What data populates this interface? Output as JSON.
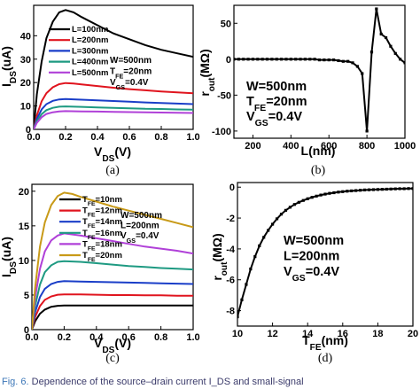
{
  "chart_data": [
    {
      "type": "line",
      "panel": "(a)",
      "xlabel": "V_DS(V)",
      "ylabel": "I_DS(uA)",
      "xlim": [
        0,
        1.0
      ],
      "ylim": [
        0,
        53
      ],
      "xticks": [
        "0.0",
        "0.2",
        "0.4",
        "0.6",
        "0.8",
        "1.0"
      ],
      "yticks": [
        "0",
        "10",
        "20",
        "30",
        "40"
      ],
      "params": [
        "W=500nm",
        "T_FE=20nm",
        "V_GS=0.4V"
      ],
      "series": [
        {
          "name": "L=100nm",
          "color": "#000000",
          "x": [
            0,
            0.02,
            0.05,
            0.08,
            0.12,
            0.16,
            0.2,
            0.25,
            0.3,
            0.4,
            0.5,
            0.6,
            0.7,
            0.8,
            0.9,
            1.0
          ],
          "y": [
            0,
            15,
            29,
            39,
            46,
            50,
            51,
            50,
            48,
            44.5,
            41,
            38.5,
            36,
            34,
            32.5,
            31
          ]
        },
        {
          "name": "L=200nm",
          "color": "#e0141e",
          "x": [
            0,
            0.02,
            0.05,
            0.08,
            0.12,
            0.16,
            0.2,
            0.25,
            0.3,
            0.4,
            0.5,
            0.6,
            0.7,
            0.8,
            0.9,
            1.0
          ],
          "y": [
            0,
            6,
            12,
            15.5,
            18,
            19.3,
            19.8,
            19.6,
            19.2,
            18.5,
            17.8,
            17.2,
            16.7,
            16.2,
            15.8,
            15.4
          ]
        },
        {
          "name": "L=300nm",
          "color": "#1a3ec8",
          "x": [
            0,
            0.02,
            0.05,
            0.08,
            0.12,
            0.16,
            0.2,
            0.3,
            0.4,
            0.5,
            0.6,
            0.7,
            0.8,
            0.9,
            1.0
          ],
          "y": [
            0,
            4.5,
            8.5,
            10.8,
            12.2,
            12.8,
            13,
            12.7,
            12.4,
            12.1,
            11.8,
            11.5,
            11.3,
            11,
            10.8
          ]
        },
        {
          "name": "L=400nm",
          "color": "#1e9a82",
          "x": [
            0,
            0.02,
            0.05,
            0.08,
            0.12,
            0.16,
            0.2,
            0.3,
            0.4,
            0.5,
            0.6,
            0.7,
            0.8,
            0.9,
            1.0
          ],
          "y": [
            0,
            3.5,
            6.5,
            8.2,
            9.2,
            9.7,
            9.8,
            9.6,
            9.4,
            9.2,
            9,
            8.8,
            8.7,
            8.5,
            8.4
          ]
        },
        {
          "name": "L=500nm",
          "color": "#b040d8",
          "x": [
            0,
            0.02,
            0.05,
            0.08,
            0.12,
            0.16,
            0.2,
            0.3,
            0.4,
            0.5,
            0.6,
            0.7,
            0.8,
            0.9,
            1.0
          ],
          "y": [
            0,
            2.8,
            5.2,
            6.6,
            7.3,
            7.7,
            7.8,
            7.7,
            7.6,
            7.5,
            7.4,
            7.3,
            7.2,
            7.1,
            7
          ]
        }
      ]
    },
    {
      "type": "line",
      "panel": "(b)",
      "xlabel": "L(nm)",
      "ylabel": "r_out(MΩ)",
      "xlim": [
        100,
        1000
      ],
      "ylim": [
        -110,
        75
      ],
      "xticks": [
        "200",
        "400",
        "600",
        "800",
        "1000"
      ],
      "yticks": [
        "-100",
        "-50",
        "0",
        "50"
      ],
      "params": [
        "W=500nm",
        "T_FE=20nm",
        "V_GS=0.4V"
      ],
      "series": [
        {
          "name": "",
          "color": "#000000",
          "x": [
            100,
            125,
            150,
            175,
            200,
            225,
            250,
            275,
            300,
            325,
            350,
            375,
            400,
            425,
            450,
            475,
            500,
            525,
            550,
            575,
            600,
            625,
            650,
            675,
            700,
            725,
            750,
            775,
            800,
            825,
            850,
            875,
            900,
            925,
            950,
            975,
            1000
          ],
          "y": [
            0,
            0,
            0,
            0,
            0,
            0,
            0,
            0,
            0,
            0,
            0,
            0,
            0,
            0,
            0,
            0,
            0,
            0,
            -1,
            -1,
            -1,
            -1,
            -2,
            -3,
            -3,
            -5,
            -10,
            -20,
            -100,
            10,
            70,
            35,
            30,
            18,
            8,
            0,
            -5
          ]
        }
      ]
    },
    {
      "type": "line",
      "panel": "(c)",
      "xlabel": "V_DS(V)",
      "ylabel": "I_DS(uA)",
      "xlim": [
        0,
        1.0
      ],
      "ylim": [
        0,
        21
      ],
      "xticks": [
        "0.0",
        "0.2",
        "0.4",
        "0.6",
        "0.8",
        "1.0"
      ],
      "yticks": [
        "0",
        "5",
        "10",
        "15",
        "20"
      ],
      "params": [
        "W=500nm",
        "L=200nm",
        "V_GS=0.4V"
      ],
      "series": [
        {
          "name": "T_FE=10nm",
          "color": "#000000",
          "x": [
            0,
            0.02,
            0.05,
            0.08,
            0.12,
            0.16,
            0.2,
            0.3,
            0.4,
            0.5,
            0.6,
            0.7,
            0.8,
            0.9,
            1.0
          ],
          "y": [
            0,
            1.2,
            2.3,
            2.9,
            3.3,
            3.45,
            3.5,
            3.5,
            3.5,
            3.5,
            3.5,
            3.5,
            3.5,
            3.5,
            3.5
          ]
        },
        {
          "name": "T_FE=12nm",
          "color": "#e0141e",
          "x": [
            0,
            0.02,
            0.05,
            0.08,
            0.12,
            0.16,
            0.2,
            0.3,
            0.4,
            0.5,
            0.6,
            0.7,
            0.8,
            0.9,
            1.0
          ],
          "y": [
            0,
            1.8,
            3.4,
            4.3,
            4.8,
            5.05,
            5.1,
            5.1,
            5.05,
            5,
            5,
            4.95,
            4.95,
            4.9,
            4.9
          ]
        },
        {
          "name": "T_FE=14nm",
          "color": "#1a3ec8",
          "x": [
            0,
            0.02,
            0.05,
            0.08,
            0.12,
            0.16,
            0.2,
            0.3,
            0.4,
            0.5,
            0.6,
            0.7,
            0.8,
            0.9,
            1.0
          ],
          "y": [
            0,
            2.5,
            4.7,
            5.9,
            6.6,
            6.9,
            7,
            6.95,
            6.9,
            6.85,
            6.8,
            6.75,
            6.7,
            6.65,
            6.6
          ]
        },
        {
          "name": "T_FE=16nm",
          "color": "#1e9a82",
          "x": [
            0,
            0.02,
            0.05,
            0.08,
            0.12,
            0.16,
            0.2,
            0.3,
            0.4,
            0.5,
            0.6,
            0.7,
            0.8,
            0.9,
            1.0
          ],
          "y": [
            0,
            3.4,
            6.5,
            8.3,
            9.3,
            9.8,
            9.9,
            9.8,
            9.6,
            9.4,
            9.2,
            9.05,
            8.9,
            8.8,
            8.7
          ]
        },
        {
          "name": "T_FE=18nm",
          "color": "#b040d8",
          "x": [
            0,
            0.02,
            0.05,
            0.08,
            0.12,
            0.16,
            0.2,
            0.3,
            0.4,
            0.5,
            0.6,
            0.7,
            0.8,
            0.9,
            1.0
          ],
          "y": [
            0,
            4.6,
            8.8,
            11.3,
            12.9,
            13.6,
            13.9,
            13.6,
            13.2,
            12.8,
            12.4,
            12,
            11.7,
            11.4,
            11
          ]
        },
        {
          "name": "T_FE=20nm",
          "color": "#c89a18",
          "x": [
            0,
            0.02,
            0.05,
            0.08,
            0.12,
            0.16,
            0.2,
            0.25,
            0.3,
            0.4,
            0.5,
            0.6,
            0.7,
            0.8,
            0.9,
            1.0
          ],
          "y": [
            0,
            6,
            12,
            15.5,
            18,
            19.3,
            19.8,
            19.6,
            19.2,
            18.5,
            17.8,
            17.2,
            16.6,
            16,
            15.4,
            14.8
          ]
        }
      ]
    },
    {
      "type": "line",
      "panel": "(d)",
      "xlabel": "T_FE(nm)",
      "ylabel": "r_out(MΩ)",
      "xlim": [
        10,
        20
      ],
      "ylim": [
        -9,
        0.3
      ],
      "xticks": [
        "10",
        "12",
        "14",
        "16",
        "18",
        "20"
      ],
      "yticks": [
        "-8",
        "-6",
        "-4",
        "-2",
        "0"
      ],
      "params": [
        "W=500nm",
        "L=200nm",
        "V_GS=0.4V"
      ],
      "series": [
        {
          "name": "",
          "color": "#000000",
          "x": [
            10,
            10.25,
            10.5,
            10.75,
            11,
            11.25,
            11.5,
            11.75,
            12,
            12.25,
            12.5,
            12.75,
            13,
            13.25,
            13.5,
            13.75,
            14,
            14.25,
            14.5,
            14.75,
            15,
            15.25,
            15.5,
            15.75,
            16,
            16.25,
            16.5,
            16.75,
            17,
            17.25,
            17.5,
            17.75,
            18,
            18.25,
            18.5,
            18.75,
            19,
            19.25,
            19.5,
            19.75,
            20
          ],
          "y": [
            -8.4,
            -7.3,
            -6.3,
            -5.3,
            -4.5,
            -3.8,
            -3.25,
            -2.8,
            -2.4,
            -2.05,
            -1.75,
            -1.5,
            -1.3,
            -1.12,
            -0.98,
            -0.86,
            -0.75,
            -0.66,
            -0.58,
            -0.51,
            -0.45,
            -0.4,
            -0.36,
            -0.32,
            -0.29,
            -0.26,
            -0.24,
            -0.22,
            -0.2,
            -0.18,
            -0.17,
            -0.16,
            -0.15,
            -0.14,
            -0.13,
            -0.12,
            -0.11,
            -0.1,
            -0.1,
            -0.09,
            -0.09
          ]
        }
      ]
    }
  ],
  "caption": {
    "figtag": "Fig. 6.",
    "text": "Dependence of the source–drain current I_DS and small-signal"
  }
}
